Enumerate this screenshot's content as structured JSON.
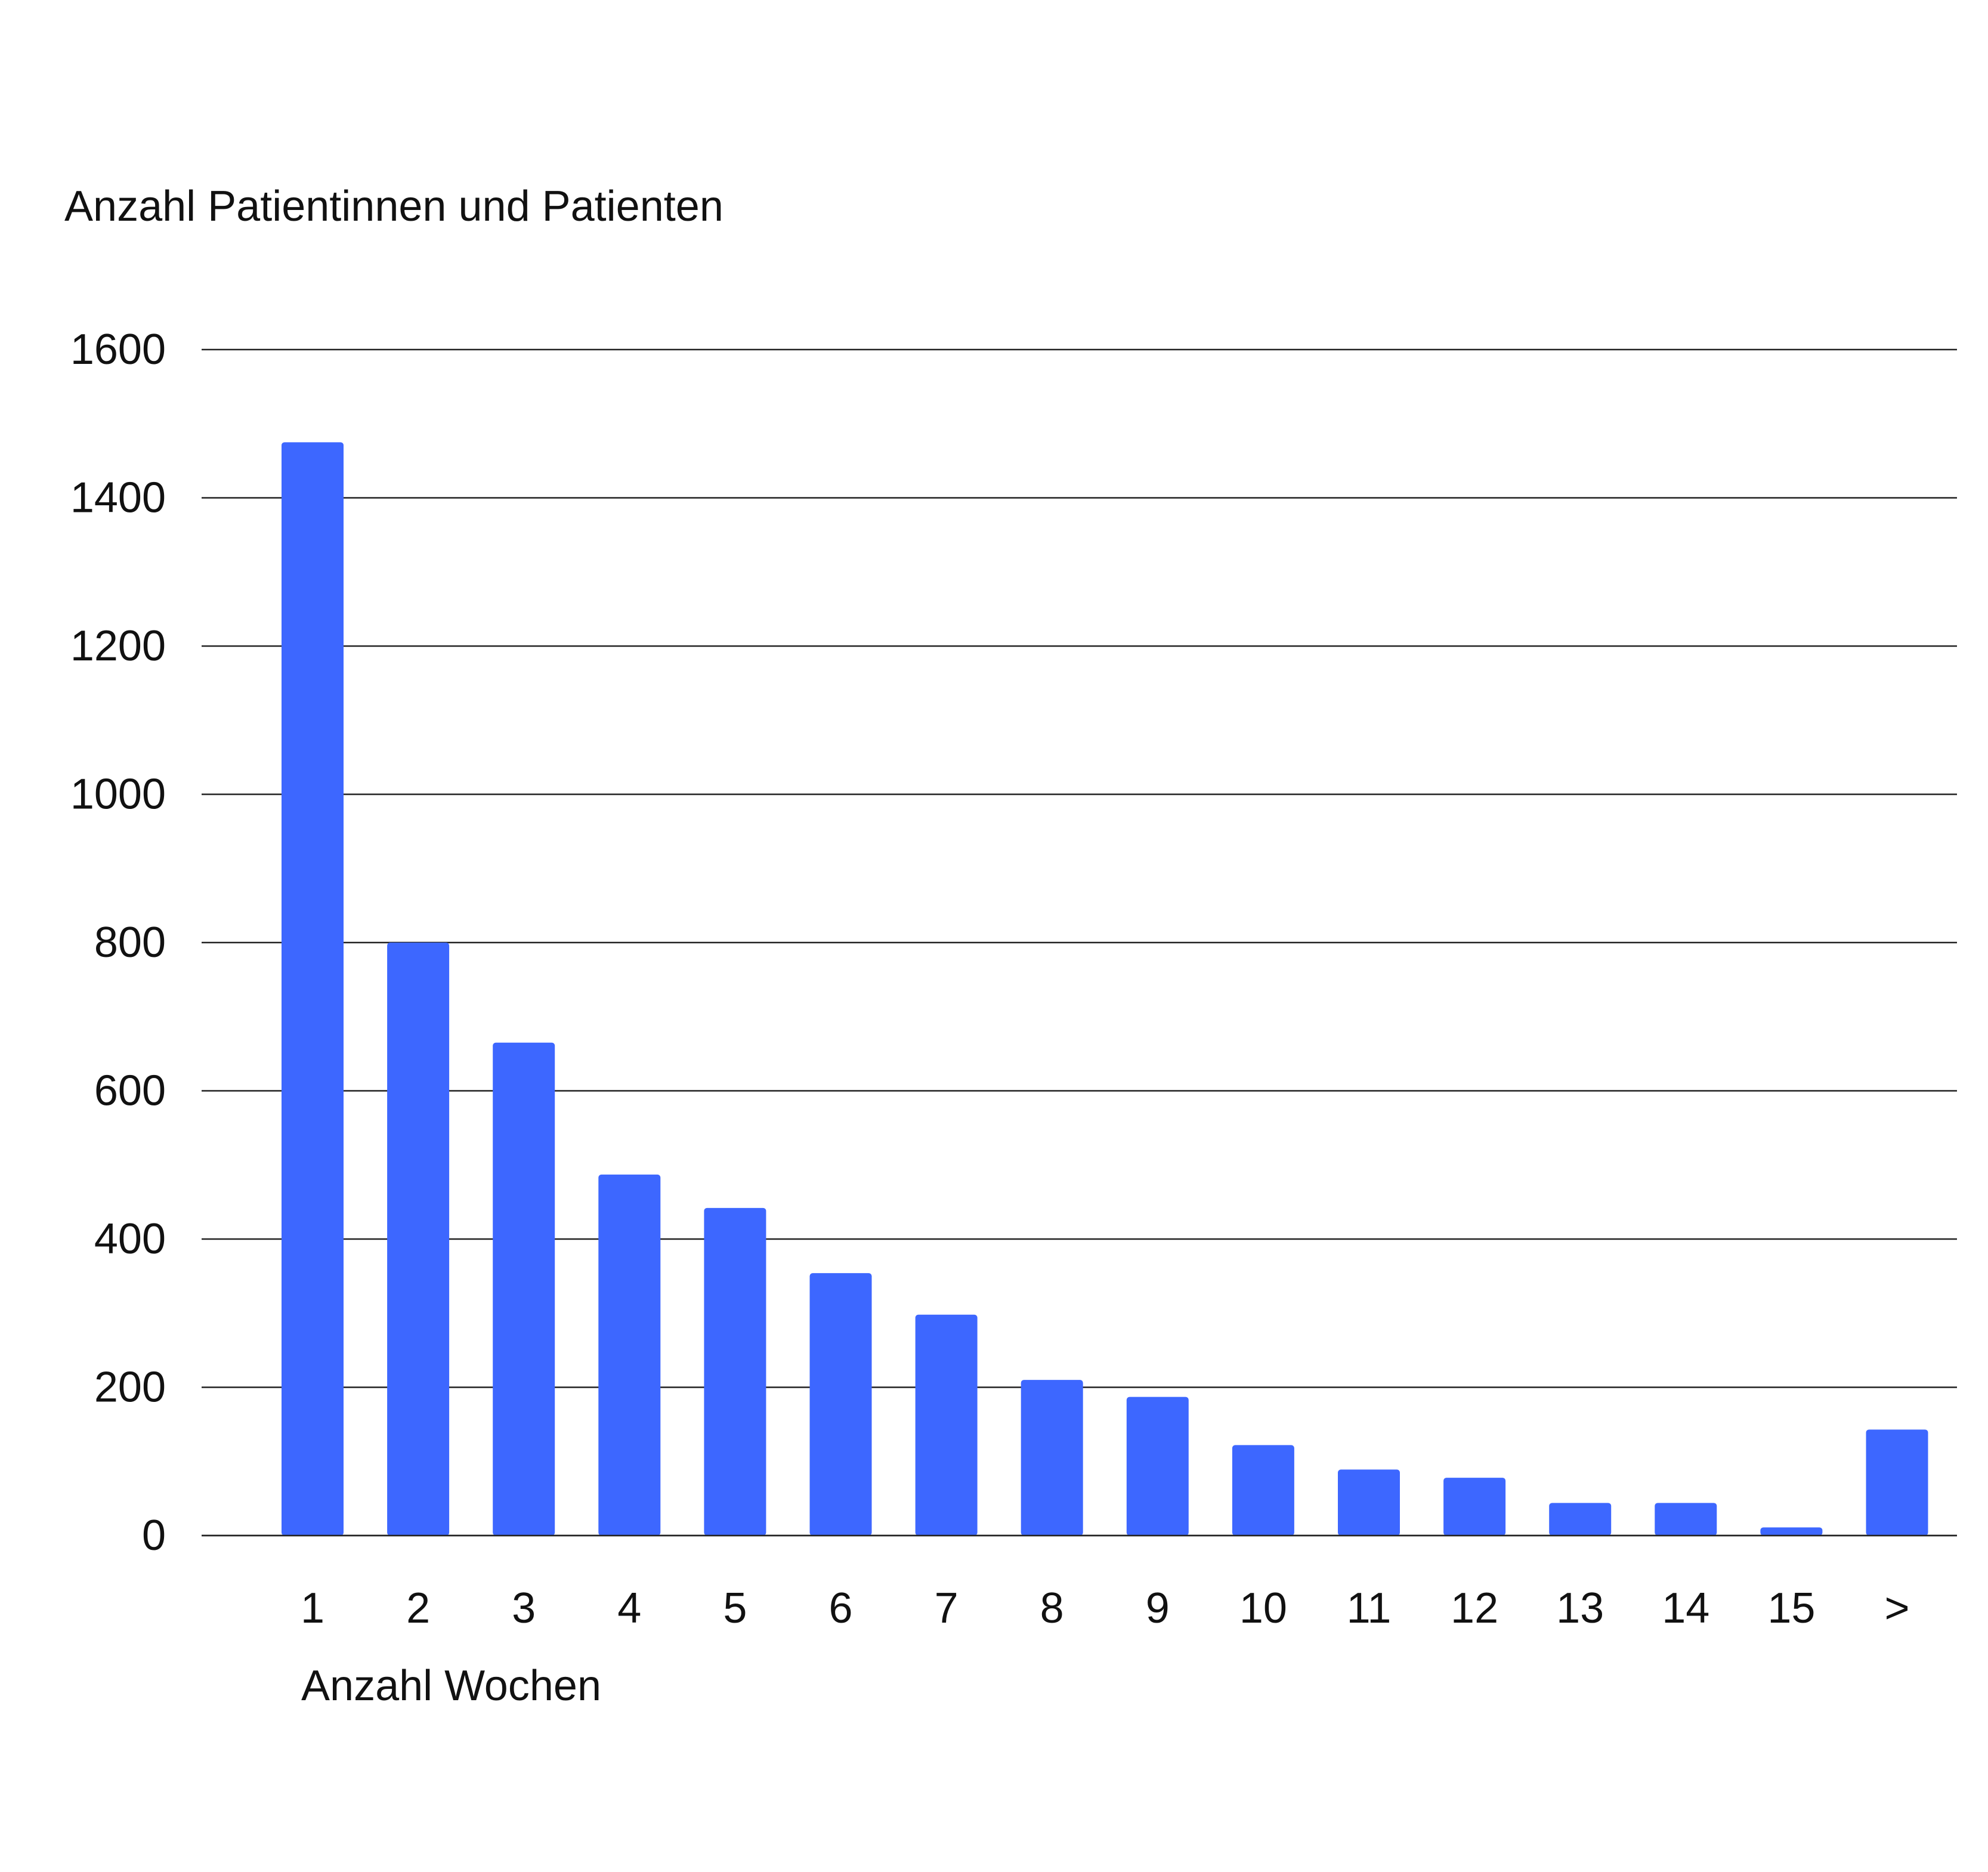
{
  "chart_data": {
    "type": "bar",
    "title": "",
    "ylabel": "Anzahl Patientinnen und Patienten",
    "xlabel": "Anzahl Wochen",
    "categories": [
      "1",
      "2",
      "3",
      "4",
      "5",
      "6",
      "7",
      "8",
      "9",
      "10",
      "11",
      "12",
      "13",
      "14",
      "15",
      ">"
    ],
    "values": [
      1475,
      800,
      665,
      487,
      442,
      354,
      298,
      210,
      187,
      122,
      89,
      78,
      44,
      44,
      11,
      143
    ],
    "ylim": [
      0,
      1600
    ],
    "yticks": [
      "0",
      "200",
      "400",
      "600",
      "800",
      "1000",
      "1200",
      "1400",
      "1600"
    ],
    "grid": true,
    "legend": "none",
    "bar_color": "#3d67ff"
  }
}
